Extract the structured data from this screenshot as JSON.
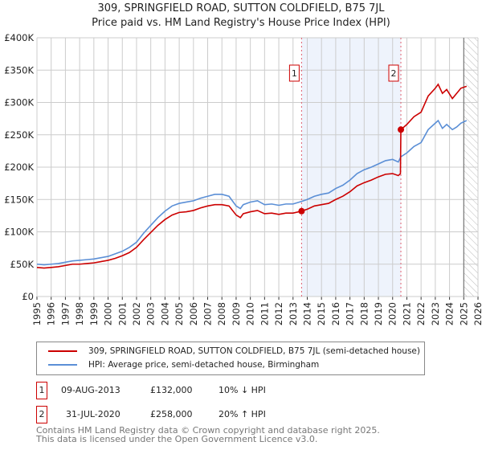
{
  "chart_data": {
    "type": "line",
    "title": "309, SPRINGFIELD ROAD, SUTTON COLDFIELD, B75 7JL",
    "subtitle": "Price paid vs. HM Land Registry's House Price Index (HPI)",
    "ylim": [
      0,
      400000
    ],
    "xlim": [
      1995,
      2026
    ],
    "yticks": [
      {
        "v": 0,
        "l": "£0"
      },
      {
        "v": 50000,
        "l": "£50K"
      },
      {
        "v": 100000,
        "l": "£100K"
      },
      {
        "v": 150000,
        "l": "£150K"
      },
      {
        "v": 200000,
        "l": "£200K"
      },
      {
        "v": 250000,
        "l": "£250K"
      },
      {
        "v": 300000,
        "l": "£300K"
      },
      {
        "v": 350000,
        "l": "£350K"
      },
      {
        "v": 400000,
        "l": "£400K"
      }
    ],
    "xticks": [
      "1995",
      "1996",
      "1997",
      "1998",
      "1999",
      "2000",
      "2001",
      "2002",
      "2003",
      "2004",
      "2005",
      "2006",
      "2007",
      "2008",
      "2009",
      "2010",
      "2011",
      "2012",
      "2013",
      "2014",
      "2015",
      "2016",
      "2017",
      "2018",
      "2019",
      "2020",
      "2021",
      "2022",
      "2023",
      "2024",
      "2025",
      "2026"
    ],
    "shaded_between": [
      2013.6,
      2020.58
    ],
    "forecast_hatch_from": 2025.0,
    "series": [
      {
        "name": "309, SPRINGFIELD ROAD, SUTTON COLDFIELD, B75 7JL (semi-detached house)",
        "color": "#cc0000",
        "points": [
          [
            1995,
            45
          ],
          [
            1995.5,
            44
          ],
          [
            1996,
            45
          ],
          [
            1996.5,
            46
          ],
          [
            1997,
            48
          ],
          [
            1997.5,
            50
          ],
          [
            1998,
            50
          ],
          [
            1998.5,
            51
          ],
          [
            1999,
            52
          ],
          [
            1999.5,
            54
          ],
          [
            2000,
            56
          ],
          [
            2000.5,
            59
          ],
          [
            2001,
            63
          ],
          [
            2001.5,
            68
          ],
          [
            2002,
            76
          ],
          [
            2002.5,
            88
          ],
          [
            2003,
            99
          ],
          [
            2003.5,
            110
          ],
          [
            2004,
            119
          ],
          [
            2004.5,
            126
          ],
          [
            2005,
            130
          ],
          [
            2005.5,
            131
          ],
          [
            2006,
            133
          ],
          [
            2006.5,
            137
          ],
          [
            2007,
            140
          ],
          [
            2007.5,
            142
          ],
          [
            2008,
            142
          ],
          [
            2008.5,
            140
          ],
          [
            2009,
            126
          ],
          [
            2009.3,
            122
          ],
          [
            2009.5,
            128
          ],
          [
            2010,
            131
          ],
          [
            2010.5,
            133
          ],
          [
            2011,
            128
          ],
          [
            2011.5,
            129
          ],
          [
            2012,
            127
          ],
          [
            2012.5,
            129
          ],
          [
            2013,
            129
          ],
          [
            2013.6,
            132
          ],
          [
            2014,
            135
          ],
          [
            2014.5,
            140
          ],
          [
            2015,
            142
          ],
          [
            2015.5,
            144
          ],
          [
            2016,
            150
          ],
          [
            2016.5,
            155
          ],
          [
            2017,
            162
          ],
          [
            2017.5,
            171
          ],
          [
            2018,
            176
          ],
          [
            2018.5,
            180
          ],
          [
            2019,
            185
          ],
          [
            2019.5,
            189
          ],
          [
            2020,
            190
          ],
          [
            2020.4,
            187
          ],
          [
            2020.55,
            190
          ],
          [
            2020.58,
            258
          ],
          [
            2021,
            266
          ],
          [
            2021.5,
            278
          ],
          [
            2022,
            285
          ],
          [
            2022.5,
            310
          ],
          [
            2023,
            322
          ],
          [
            2023.2,
            328
          ],
          [
            2023.5,
            314
          ],
          [
            2023.8,
            320
          ],
          [
            2024.2,
            306
          ],
          [
            2024.5,
            314
          ],
          [
            2024.8,
            322
          ],
          [
            2025.2,
            325
          ]
        ]
      },
      {
        "name": "HPI: Average price, semi-detached house, Birmingham",
        "color": "#5b8fd6",
        "points": [
          [
            1995,
            50
          ],
          [
            1995.5,
            49
          ],
          [
            1996,
            50
          ],
          [
            1996.5,
            51
          ],
          [
            1997,
            53
          ],
          [
            1997.5,
            55
          ],
          [
            1998,
            56
          ],
          [
            1998.5,
            57
          ],
          [
            1999,
            58
          ],
          [
            1999.5,
            60
          ],
          [
            2000,
            62
          ],
          [
            2000.5,
            66
          ],
          [
            2001,
            70
          ],
          [
            2001.5,
            76
          ],
          [
            2002,
            84
          ],
          [
            2002.5,
            98
          ],
          [
            2003,
            110
          ],
          [
            2003.5,
            122
          ],
          [
            2004,
            132
          ],
          [
            2004.5,
            140
          ],
          [
            2005,
            144
          ],
          [
            2005.5,
            146
          ],
          [
            2006,
            148
          ],
          [
            2006.5,
            152
          ],
          [
            2007,
            155
          ],
          [
            2007.5,
            158
          ],
          [
            2008,
            158
          ],
          [
            2008.5,
            155
          ],
          [
            2009,
            140
          ],
          [
            2009.3,
            136
          ],
          [
            2009.5,
            142
          ],
          [
            2010,
            146
          ],
          [
            2010.5,
            148
          ],
          [
            2011,
            142
          ],
          [
            2011.5,
            143
          ],
          [
            2012,
            141
          ],
          [
            2012.5,
            143
          ],
          [
            2013,
            143
          ],
          [
            2013.6,
            147
          ],
          [
            2014,
            150
          ],
          [
            2014.5,
            155
          ],
          [
            2015,
            158
          ],
          [
            2015.5,
            160
          ],
          [
            2016,
            167
          ],
          [
            2016.5,
            172
          ],
          [
            2017,
            180
          ],
          [
            2017.5,
            190
          ],
          [
            2018,
            196
          ],
          [
            2018.5,
            200
          ],
          [
            2019,
            205
          ],
          [
            2019.5,
            210
          ],
          [
            2020,
            212
          ],
          [
            2020.4,
            208
          ],
          [
            2020.58,
            216
          ],
          [
            2021,
            222
          ],
          [
            2021.5,
            232
          ],
          [
            2022,
            238
          ],
          [
            2022.5,
            258
          ],
          [
            2023,
            268
          ],
          [
            2023.2,
            272
          ],
          [
            2023.5,
            260
          ],
          [
            2023.8,
            266
          ],
          [
            2024.2,
            258
          ],
          [
            2024.5,
            262
          ],
          [
            2024.8,
            268
          ],
          [
            2025.2,
            272
          ]
        ]
      }
    ],
    "value_unit": "thousand GBP",
    "sales": [
      {
        "label": "1",
        "x": 2013.6,
        "y": 132
      },
      {
        "label": "2",
        "x": 2020.58,
        "y": 258
      }
    ]
  },
  "transactions": [
    {
      "n": "1",
      "date": "09-AUG-2013",
      "price": "£132,000",
      "hpi": "10% ↓ HPI"
    },
    {
      "n": "2",
      "date": "31-JUL-2020",
      "price": "£258,000",
      "hpi": "20% ↑ HPI"
    }
  ],
  "footer": [
    "Contains HM Land Registry data © Crown copyright and database right 2025.",
    "This data is licensed under the Open Government Licence v3.0."
  ]
}
